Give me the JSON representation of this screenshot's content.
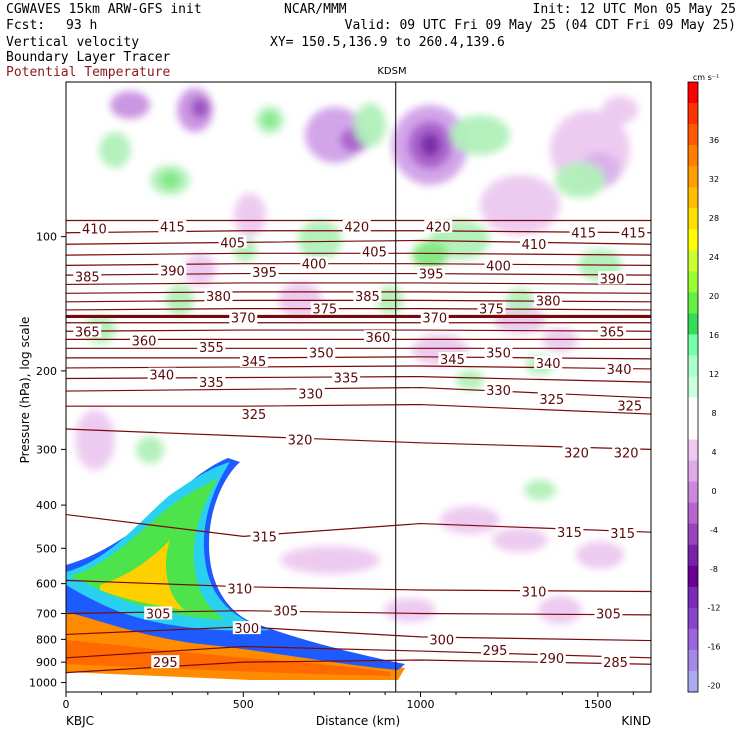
{
  "header": {
    "model": "CGWAVES 15km ARW-GFS init",
    "org": "NCAR/MMM",
    "init": "Init: 12 UTC Mon 05 May 25",
    "fcst_label": "Fcst:",
    "fcst_value": "93 h",
    "valid": "Valid: 09 UTC Fri 09 May 25 (04 CDT Fri 09 May 25)",
    "xy": "XY= 150.5,136.9 to 260.4,139.6",
    "field1": "Vertical velocity",
    "field2": "Boundary Layer Tracer",
    "field3": "Potential Temperature"
  },
  "chart_data": {
    "type": "heatmap",
    "ylabel": "Pressure (hPa), log scale",
    "xlabel": "Distance (km)",
    "x_ticks": [
      "0",
      "500",
      "1000",
      "1500"
    ],
    "x_tick_values": [
      0,
      500,
      1000,
      1500
    ],
    "xlim": [
      0,
      1650
    ],
    "y_ticks": [
      "100",
      "200",
      "300",
      "400",
      "500",
      "600",
      "700",
      "800",
      "900",
      "1000"
    ],
    "y_tick_values": [
      100,
      200,
      300,
      400,
      500,
      600,
      700,
      800,
      900,
      1000
    ],
    "ylim": [
      1050,
      45
    ],
    "y_scale": "log",
    "left_station": "KBJC",
    "right_station": "KIND",
    "marker_station": "KDSM",
    "marker_x_km": 930,
    "colorbar": {
      "unit": "cm s⁻¹",
      "tick_labels": [
        "36",
        "32",
        "28",
        "24",
        "20",
        "16",
        "12",
        "8",
        "4",
        "0",
        "-4",
        "-8",
        "-12",
        "-16",
        "-20"
      ],
      "colors": [
        "#ff0000",
        "#ff3300",
        "#ff5a00",
        "#ff7e00",
        "#ff9e00",
        "#ffbe00",
        "#ffe000",
        "#ffff00",
        "#ccff33",
        "#99ff33",
        "#66ee44",
        "#33dd55",
        "#77ffaa",
        "#aaffcc",
        "#ccffdd",
        "#ffffff",
        "#ffffff",
        "#f0c8f0",
        "#e0aae8",
        "#cc88dd",
        "#b466cc",
        "#9944bb",
        "#7722aa",
        "#6a0090",
        "#7a2ab8",
        "#8844cc",
        "#9966dd",
        "#a488e6",
        "#aaaaee"
      ]
    },
    "theta_labels": [
      {
        "v": "410",
        "x_km": 80,
        "p": 96
      },
      {
        "v": "415",
        "x_km": 300,
        "p": 95
      },
      {
        "v": "420",
        "x_km": 820,
        "p": 95
      },
      {
        "v": "420",
        "x_km": 1050,
        "p": 95
      },
      {
        "v": "415",
        "x_km": 1460,
        "p": 98
      },
      {
        "v": "415",
        "x_km": 1600,
        "p": 98
      },
      {
        "v": "405",
        "x_km": 470,
        "p": 103
      },
      {
        "v": "405",
        "x_km": 870,
        "p": 108
      },
      {
        "v": "410",
        "x_km": 1320,
        "p": 104
      },
      {
        "v": "385",
        "x_km": 60,
        "p": 123
      },
      {
        "v": "390",
        "x_km": 300,
        "p": 119
      },
      {
        "v": "395",
        "x_km": 560,
        "p": 120
      },
      {
        "v": "400",
        "x_km": 700,
        "p": 115
      },
      {
        "v": "395",
        "x_km": 1030,
        "p": 121
      },
      {
        "v": "400",
        "x_km": 1220,
        "p": 116
      },
      {
        "v": "390",
        "x_km": 1540,
        "p": 124
      },
      {
        "v": "380",
        "x_km": 430,
        "p": 136
      },
      {
        "v": "375",
        "x_km": 730,
        "p": 145
      },
      {
        "v": "385",
        "x_km": 850,
        "p": 136
      },
      {
        "v": "375",
        "x_km": 1200,
        "p": 145
      },
      {
        "v": "380",
        "x_km": 1360,
        "p": 139
      },
      {
        "v": "370",
        "x_km": 500,
        "p": 152
      },
      {
        "v": "370",
        "x_km": 1040,
        "p": 152
      },
      {
        "v": "365",
        "x_km": 60,
        "p": 163
      },
      {
        "v": "360",
        "x_km": 220,
        "p": 171
      },
      {
        "v": "365",
        "x_km": 1540,
        "p": 163
      },
      {
        "v": "360",
        "x_km": 880,
        "p": 168
      },
      {
        "v": "355",
        "x_km": 410,
        "p": 177
      },
      {
        "v": "350",
        "x_km": 720,
        "p": 182
      },
      {
        "v": "350",
        "x_km": 1220,
        "p": 182
      },
      {
        "v": "345",
        "x_km": 530,
        "p": 190
      },
      {
        "v": "345",
        "x_km": 1090,
        "p": 188
      },
      {
        "v": "340",
        "x_km": 1360,
        "p": 192
      },
      {
        "v": "340",
        "x_km": 1560,
        "p": 198
      },
      {
        "v": "340",
        "x_km": 270,
        "p": 204
      },
      {
        "v": "335",
        "x_km": 410,
        "p": 212
      },
      {
        "v": "335",
        "x_km": 790,
        "p": 207
      },
      {
        "v": "330",
        "x_km": 690,
        "p": 225
      },
      {
        "v": "330",
        "x_km": 1220,
        "p": 221
      },
      {
        "v": "325",
        "x_km": 1370,
        "p": 231
      },
      {
        "v": "325",
        "x_km": 1590,
        "p": 239
      },
      {
        "v": "325",
        "x_km": 530,
        "p": 250
      },
      {
        "v": "320",
        "x_km": 660,
        "p": 285
      },
      {
        "v": "320",
        "x_km": 1440,
        "p": 305
      },
      {
        "v": "320",
        "x_km": 1580,
        "p": 305
      },
      {
        "v": "315",
        "x_km": 560,
        "p": 470
      },
      {
        "v": "315",
        "x_km": 1420,
        "p": 460
      },
      {
        "v": "315",
        "x_km": 1570,
        "p": 462
      },
      {
        "v": "310",
        "x_km": 490,
        "p": 615
      },
      {
        "v": "310",
        "x_km": 1320,
        "p": 625
      },
      {
        "v": "305",
        "x_km": 260,
        "p": 700
      },
      {
        "v": "305",
        "x_km": 620,
        "p": 690
      },
      {
        "v": "305",
        "x_km": 1530,
        "p": 700
      },
      {
        "v": "300",
        "x_km": 510,
        "p": 755
      },
      {
        "v": "300",
        "x_km": 1060,
        "p": 800
      },
      {
        "v": "295",
        "x_km": 280,
        "p": 900
      },
      {
        "v": "295",
        "x_km": 1210,
        "p": 845
      },
      {
        "v": "290",
        "x_km": 1370,
        "p": 880
      },
      {
        "v": "285",
        "x_km": 1550,
        "p": 900
      }
    ]
  }
}
